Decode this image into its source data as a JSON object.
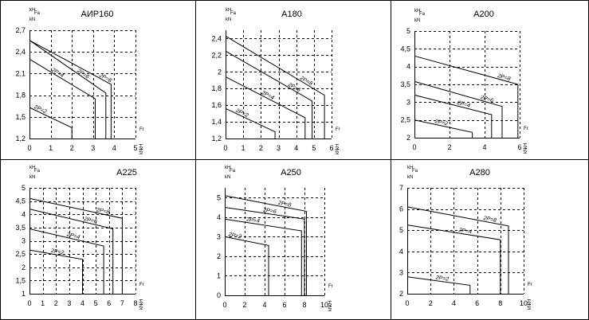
{
  "chart_data": [
    {
      "type": "line",
      "title": "АИР160",
      "ylabel": "Fa",
      "xlabel": "Fr",
      "yunit": "kH / kN",
      "xunit": "kH / kN",
      "xlim": [
        0,
        5
      ],
      "ylim": [
        1.2,
        2.7
      ],
      "xticks": [
        "0",
        "1",
        "2",
        "3",
        "4",
        "5"
      ],
      "yticks": [
        "1,2",
        "1,5",
        "1,8",
        "2,1",
        "2,4",
        "2,7"
      ],
      "series": [
        {
          "name": "2P=2",
          "values": [
            [
              0,
              1.63
            ],
            [
              2,
              1.35
            ],
            [
              2,
              1.2
            ]
          ]
        },
        {
          "name": "2P=4",
          "values": [
            [
              0,
              2.3
            ],
            [
              3.1,
              1.75
            ],
            [
              3.1,
              1.2
            ]
          ]
        },
        {
          "name": "2P=6",
          "values": [
            [
              0,
              2.56
            ],
            [
              3.6,
              1.83
            ],
            [
              3.6,
              1.2
            ]
          ]
        },
        {
          "name": "2P=8",
          "values": [
            [
              0,
              2.56
            ],
            [
              3.85,
              1.95
            ],
            [
              3.85,
              1.2
            ]
          ]
        }
      ]
    },
    {
      "type": "line",
      "title": "A180",
      "ylabel": "Fa",
      "xlabel": "Fr",
      "yunit": "kH / kN",
      "xunit": "kH / kN",
      "xlim": [
        0,
        6
      ],
      "ylim": [
        1.2,
        2.5
      ],
      "xticks": [
        "0",
        "1",
        "2",
        "3",
        "4",
        "5",
        "6"
      ],
      "yticks": [
        "1,2",
        "1,4",
        "1,6",
        "1,8",
        "2",
        "2,2",
        "2,4"
      ],
      "series": [
        {
          "name": "2P=2",
          "values": [
            [
              0,
              1.56
            ],
            [
              2.8,
              1.28
            ],
            [
              2.8,
              1.2
            ]
          ]
        },
        {
          "name": "2P=4",
          "values": [
            [
              0,
              1.94
            ],
            [
              4.5,
              1.45
            ],
            [
              4.5,
              1.2
            ]
          ]
        },
        {
          "name": "2P=6",
          "values": [
            [
              0,
              2.25
            ],
            [
              4.9,
              1.65
            ],
            [
              4.9,
              1.2
            ]
          ]
        },
        {
          "name": "2P=8",
          "values": [
            [
              0,
              2.43
            ],
            [
              5.6,
              1.72
            ],
            [
              5.6,
              1.2
            ]
          ]
        }
      ]
    },
    {
      "type": "line",
      "title": "A200",
      "ylabel": "Fa",
      "xlabel": "Fr",
      "yunit": "kH / kN",
      "xunit": "kH / kN",
      "xlim": [
        0,
        6
      ],
      "ylim": [
        2,
        5
      ],
      "xticks": [
        "0",
        "2",
        "4",
        "6"
      ],
      "yticks": [
        "2",
        "2,5",
        "3",
        "3,5",
        "4",
        "4,5",
        "5"
      ],
      "series": [
        {
          "name": "2P=2",
          "values": [
            [
              0,
              2.5
            ],
            [
              3.3,
              2.15
            ],
            [
              3.3,
              2.0
            ]
          ]
        },
        {
          "name": "2P=4",
          "values": [
            [
              0,
              3.2
            ],
            [
              4.4,
              2.65
            ],
            [
              4.4,
              2.0
            ]
          ]
        },
        {
          "name": "2P=6",
          "values": [
            [
              0,
              3.58
            ],
            [
              5.0,
              2.88
            ],
            [
              5.0,
              2.0
            ]
          ]
        },
        {
          "name": "2P=8",
          "values": [
            [
              0,
              4.3
            ],
            [
              5.9,
              3.5
            ],
            [
              5.9,
              2.0
            ]
          ]
        }
      ]
    },
    {
      "type": "line",
      "title": "A225",
      "ylabel": "Fa",
      "xlabel": "Fr",
      "yunit": "kH / kN",
      "xunit": "kH / kN",
      "xlim": [
        0,
        8
      ],
      "ylim": [
        1,
        5
      ],
      "xticks": [
        "0",
        "1",
        "2",
        "3",
        "4",
        "5",
        "6",
        "7",
        "8"
      ],
      "yticks": [
        "1",
        "1,5",
        "2",
        "2,5",
        "3",
        "3,5",
        "4",
        "4,5",
        "5"
      ],
      "series": [
        {
          "name": "2P=2",
          "values": [
            [
              0,
              2.65
            ],
            [
              4.0,
              2.3
            ],
            [
              4.0,
              1.0
            ]
          ]
        },
        {
          "name": "2P=4",
          "values": [
            [
              0,
              3.45
            ],
            [
              5.6,
              2.8
            ],
            [
              5.6,
              1.0
            ]
          ]
        },
        {
          "name": "2P=6",
          "values": [
            [
              0,
              4.2
            ],
            [
              6.3,
              3.45
            ],
            [
              6.3,
              1.0
            ]
          ]
        },
        {
          "name": "2P=8",
          "values": [
            [
              0,
              4.6
            ],
            [
              7.0,
              3.85
            ],
            [
              7.0,
              1.0
            ]
          ]
        }
      ]
    },
    {
      "type": "line",
      "title": "A250",
      "ylabel": "Fa",
      "xlabel": "Fr",
      "yunit": "kH / kN",
      "xunit": "kH / kN",
      "xlim": [
        0,
        10
      ],
      "ylim": [
        0,
        5.5
      ],
      "xticks": [
        "0",
        "2",
        "4",
        "6",
        "8",
        "10"
      ],
      "yticks": [
        "0",
        "1",
        "2",
        "3",
        "4",
        "5"
      ],
      "series": [
        {
          "name": "2P=2",
          "values": [
            [
              0,
              3.0
            ],
            [
              4.4,
              2.55
            ],
            [
              4.4,
              0
            ]
          ]
        },
        {
          "name": "2P=4",
          "values": [
            [
              0,
              3.9
            ],
            [
              7.7,
              3.3
            ],
            [
              7.7,
              0
            ]
          ]
        },
        {
          "name": "2P=6",
          "values": [
            [
              0,
              4.5
            ],
            [
              8.0,
              3.9
            ],
            [
              8.0,
              0
            ]
          ]
        },
        {
          "name": "2P=8",
          "values": [
            [
              0,
              5.1
            ],
            [
              8.2,
              4.3
            ],
            [
              8.2,
              0
            ]
          ]
        }
      ]
    },
    {
      "type": "line",
      "title": "A280",
      "ylabel": "Fa",
      "xlabel": "Fr",
      "yunit": "kH / kN",
      "xunit": "kH / kN",
      "xlim": [
        0,
        10
      ],
      "ylim": [
        2,
        7
      ],
      "xticks": [
        "0",
        "2",
        "4",
        "6",
        "8",
        "10"
      ],
      "yticks": [
        "2",
        "3",
        "4",
        "5",
        "6",
        "7"
      ],
      "series": [
        {
          "name": "2P=2",
          "values": [
            [
              0,
              2.8
            ],
            [
              5.4,
              2.4
            ],
            [
              5.4,
              2.0
            ]
          ]
        },
        {
          "name": "2P=4",
          "values": [
            [
              0,
              5.25
            ],
            [
              8.0,
              4.55
            ],
            [
              8.0,
              2.0
            ]
          ]
        },
        {
          "name": "2P=8",
          "values": [
            [
              0,
              6.1
            ],
            [
              8.7,
              5.2
            ],
            [
              8.7,
              2.0
            ]
          ]
        }
      ]
    }
  ]
}
